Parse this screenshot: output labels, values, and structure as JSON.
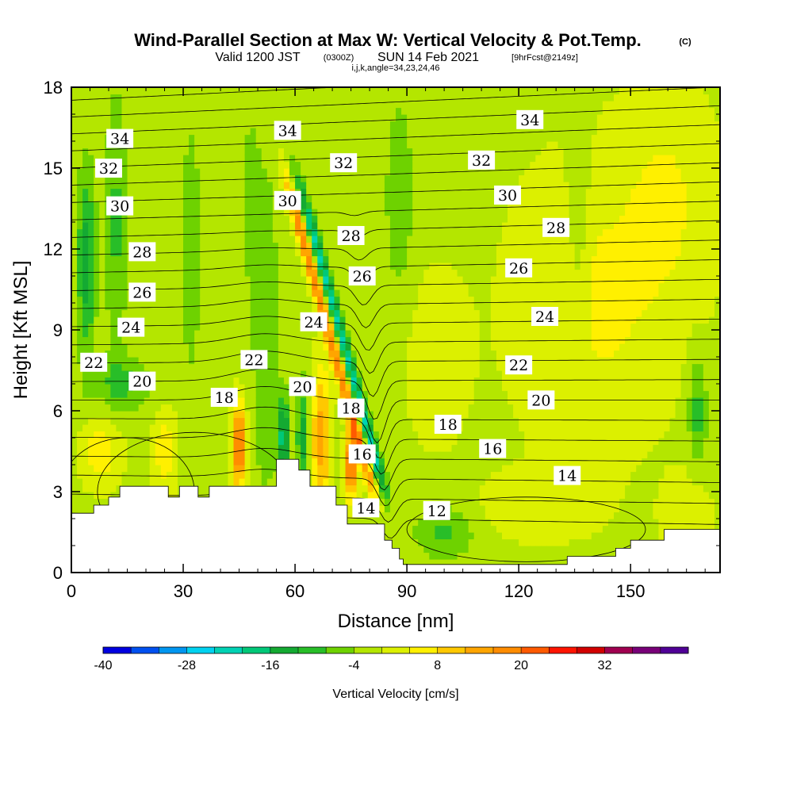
{
  "chart_data": {
    "type": "heatmap",
    "title": "Wind-Parallel Section at Max W: Vertical Velocity & Pot.Temp.",
    "title_mark": "(C)",
    "subtitle_main": "Valid 1200 JST",
    "subtitle_utc": "(0300Z)",
    "subtitle_date": "SUN 14 Feb 2021",
    "subtitle_fcst": "[9hrFcst@2149z]",
    "info_line": "i,j,k,angle=34,23,24,46",
    "xlabel": "Distance [nm]",
    "ylabel": "Height [Kft MSL]",
    "xlim": [
      0,
      174
    ],
    "ylim": [
      0,
      18
    ],
    "x_ticks": [
      "0",
      "30",
      "60",
      "90",
      "120",
      "150"
    ],
    "x_tick_values": [
      0,
      30,
      60,
      90,
      120,
      150
    ],
    "y_ticks": [
      "0",
      "3",
      "6",
      "9",
      "12",
      "15",
      "18"
    ],
    "y_tick_values": [
      0,
      3,
      6,
      9,
      12,
      15,
      18
    ],
    "colorbar": {
      "label": "Vertical Velocity [cm/s]",
      "tick_labels": [
        "-40",
        "-28",
        "-16",
        "-4",
        "8",
        "20",
        "32"
      ],
      "tick_values": [
        -40,
        -28,
        -16,
        -4,
        8,
        20,
        32
      ],
      "range": [
        -40,
        44
      ],
      "colors": [
        "#0000e0",
        "#0050f0",
        "#0096f0",
        "#00d2f0",
        "#00d2b4",
        "#00c878",
        "#14aa32",
        "#28be28",
        "#6ed200",
        "#b4e600",
        "#dcf000",
        "#fff000",
        "#ffc800",
        "#ffa500",
        "#ff8c00",
        "#ff5a00",
        "#ff1400",
        "#d20000",
        "#a00050",
        "#780078",
        "#500096"
      ]
    },
    "background_w_cm_s": -1,
    "w_features": [
      {
        "x": 4,
        "z": 11.5,
        "w": -13,
        "dx": 2.5,
        "dz": 3.5
      },
      {
        "x": 12,
        "z": 13,
        "w": -8,
        "dx": 3,
        "dz": 5
      },
      {
        "x": 14,
        "z": 7,
        "w": -8,
        "dx": 8,
        "dz": 1
      },
      {
        "x": 32,
        "z": 12,
        "w": -6,
        "dx": 3,
        "dz": 5
      },
      {
        "x": 52,
        "z": 9,
        "w": -6,
        "dx": 4,
        "dz": 7
      },
      {
        "x": 88,
        "z": 14,
        "w": -6,
        "dx": 4,
        "dz": 4
      },
      {
        "x": 136,
        "z": 13,
        "w": -5,
        "dx": 3,
        "dz": 5
      },
      {
        "x": 168,
        "z": 6,
        "w": -9,
        "dx": 2.5,
        "dz": 2
      },
      {
        "x": 48,
        "z": 14,
        "w": -5,
        "dx": 2,
        "dz": 3
      },
      {
        "x": 8,
        "z": 4.5,
        "w": 8,
        "dx": 5,
        "dz": 1.2
      },
      {
        "x": 25,
        "z": 4.5,
        "w": 8,
        "dx": 3,
        "dz": 1.5
      },
      {
        "x": 45,
        "z": 4.7,
        "w": 24,
        "dx": 1.8,
        "dz": 1.5
      },
      {
        "x": 67,
        "z": 5,
        "w": 16,
        "dx": 2.5,
        "dz": 2.5
      },
      {
        "x": 75,
        "z": 4,
        "w": 26,
        "dx": 1.5,
        "dz": 1.2
      },
      {
        "x": 57,
        "z": 5,
        "w": -18,
        "dx": 1.5,
        "dz": 1.5
      },
      {
        "x": 62,
        "z": 5,
        "w": -14,
        "dx": 1.5,
        "dz": 2
      },
      {
        "x": 140,
        "z": 10,
        "w": 6,
        "dx": 20,
        "dz": 5
      },
      {
        "x": 160,
        "z": 14,
        "w": 5,
        "dx": 12,
        "dz": 4
      },
      {
        "x": 100,
        "z": 1.5,
        "w": -8,
        "dx": 8,
        "dz": 1
      },
      {
        "x": 125,
        "z": 2.5,
        "w": 4,
        "dx": 15,
        "dz": 1.2
      },
      {
        "x": 165,
        "z": 2,
        "w": 5,
        "dx": 6,
        "dz": 1.5
      },
      {
        "x": 98,
        "z": 8,
        "w": 4,
        "dx": 8,
        "dz": 3
      }
    ],
    "w_bands": [
      {
        "x_at_z2": 83,
        "slope_nm_per_kft": -2,
        "z_range": [
          2,
          16
        ],
        "width_nm": 1.6,
        "w": 20
      },
      {
        "x_at_z2": 86,
        "slope_nm_per_kft": -2,
        "z_range": [
          2,
          16
        ],
        "width_nm": 1.6,
        "w": -20
      }
    ],
    "theta_contour_labels": [
      {
        "label": "34",
        "x": 13,
        "z": 16.1
      },
      {
        "label": "34",
        "x": 58,
        "z": 16.4
      },
      {
        "label": "34",
        "x": 123,
        "z": 16.8
      },
      {
        "label": "32",
        "x": 10,
        "z": 15.0
      },
      {
        "label": "32",
        "x": 73,
        "z": 15.2
      },
      {
        "label": "32",
        "x": 110,
        "z": 15.3
      },
      {
        "label": "30",
        "x": 13,
        "z": 13.6
      },
      {
        "label": "30",
        "x": 58,
        "z": 13.8
      },
      {
        "label": "30",
        "x": 117,
        "z": 14.0
      },
      {
        "label": "28",
        "x": 19,
        "z": 11.9
      },
      {
        "label": "28",
        "x": 75,
        "z": 12.5
      },
      {
        "label": "28",
        "x": 130,
        "z": 12.8
      },
      {
        "label": "26",
        "x": 19,
        "z": 10.4
      },
      {
        "label": "26",
        "x": 78,
        "z": 11.0
      },
      {
        "label": "26",
        "x": 120,
        "z": 11.3
      },
      {
        "label": "24",
        "x": 16,
        "z": 9.1
      },
      {
        "label": "24",
        "x": 65,
        "z": 9.3
      },
      {
        "label": "24",
        "x": 127,
        "z": 9.5
      },
      {
        "label": "22",
        "x": 6,
        "z": 7.8
      },
      {
        "label": "22",
        "x": 49,
        "z": 7.9
      },
      {
        "label": "22",
        "x": 120,
        "z": 7.7
      },
      {
        "label": "20",
        "x": 19,
        "z": 7.1
      },
      {
        "label": "20",
        "x": 62,
        "z": 6.9
      },
      {
        "label": "20",
        "x": 126,
        "z": 6.4
      },
      {
        "label": "18",
        "x": 41,
        "z": 6.5
      },
      {
        "label": "18",
        "x": 75,
        "z": 6.1
      },
      {
        "label": "18",
        "x": 101,
        "z": 5.5
      },
      {
        "label": "16",
        "x": 78,
        "z": 4.4
      },
      {
        "label": "16",
        "x": 113,
        "z": 4.6
      },
      {
        "label": "14",
        "x": 79,
        "z": 2.4
      },
      {
        "label": "14",
        "x": 133,
        "z": 3.6
      },
      {
        "label": "12",
        "x": 98,
        "z": 2.3
      }
    ],
    "terrain_kft": [
      [
        0,
        2.2
      ],
      [
        6,
        2.2
      ],
      [
        6,
        2.5
      ],
      [
        10,
        2.5
      ],
      [
        10,
        2.8
      ],
      [
        13,
        2.8
      ],
      [
        13,
        3.2
      ],
      [
        26,
        3.2
      ],
      [
        26,
        2.8
      ],
      [
        29,
        2.8
      ],
      [
        29,
        3.2
      ],
      [
        34,
        3.2
      ],
      [
        34,
        2.8
      ],
      [
        37,
        2.8
      ],
      [
        37,
        3.2
      ],
      [
        55,
        3.2
      ],
      [
        55,
        3.5
      ],
      [
        55,
        4.2
      ],
      [
        61,
        4.2
      ],
      [
        61,
        3.8
      ],
      [
        64,
        3.8
      ],
      [
        64,
        3.2
      ],
      [
        71,
        3.2
      ],
      [
        71,
        2.5
      ],
      [
        74,
        2.5
      ],
      [
        74,
        1.8
      ],
      [
        84,
        1.8
      ],
      [
        84,
        1.2
      ],
      [
        86,
        1.2
      ],
      [
        86,
        0.9
      ],
      [
        88,
        0.9
      ],
      [
        88,
        0.5
      ],
      [
        89,
        0.5
      ],
      [
        89,
        0.3
      ],
      [
        133,
        0.3
      ],
      [
        133,
        0.6
      ],
      [
        146,
        0.6
      ],
      [
        146,
        0.9
      ],
      [
        150,
        0.9
      ],
      [
        150,
        1.2
      ],
      [
        159,
        1.2
      ],
      [
        159,
        1.6
      ],
      [
        174,
        1.6
      ]
    ],
    "theta_levels": [
      12,
      13,
      14,
      15,
      16,
      17,
      18,
      19,
      20,
      21,
      22,
      23,
      24,
      25,
      26,
      27,
      28,
      29,
      30,
      31,
      32,
      33,
      34,
      35
    ]
  }
}
